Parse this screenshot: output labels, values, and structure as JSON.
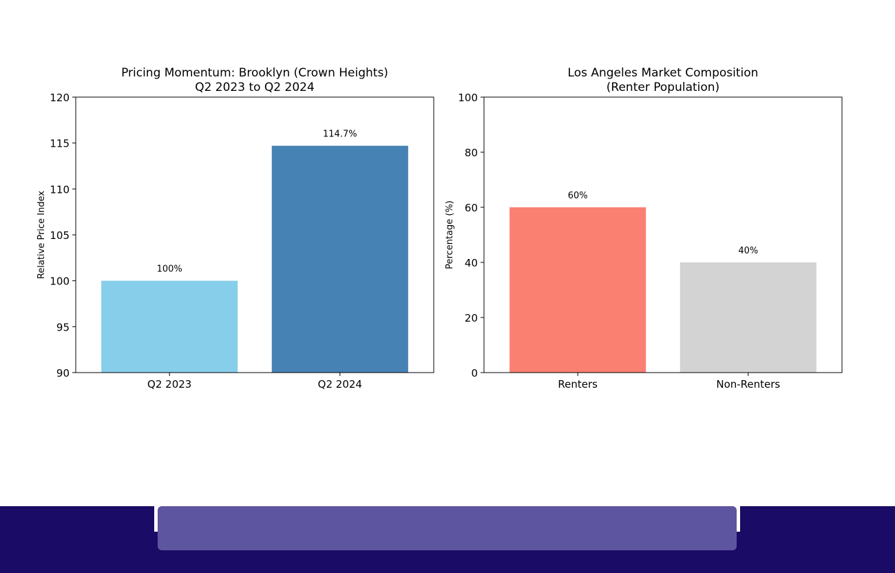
{
  "chart_data": [
    {
      "type": "bar",
      "title": "Pricing Momentum: Brooklyn (Crown Heights)",
      "subtitle": "Q2 2023 to Q2 2024",
      "xlabel": "",
      "ylabel": "Relative Price Index",
      "categories": [
        "Q2 2023",
        "Q2 2024"
      ],
      "values": [
        100,
        114.7
      ],
      "data_labels": [
        "100%",
        "114.7%"
      ],
      "colors": [
        "#87ceeb",
        "#4682b4"
      ],
      "ylim": [
        90,
        120
      ],
      "yticks": [
        90,
        95,
        100,
        105,
        110,
        115,
        120
      ],
      "grid": false
    },
    {
      "type": "bar",
      "title": "Los Angeles Market Composition",
      "subtitle": "(Renter Population)",
      "xlabel": "",
      "ylabel": "Percentage (%)",
      "categories": [
        "Renters",
        "Non-Renters"
      ],
      "values": [
        60,
        40
      ],
      "data_labels": [
        "60%",
        "40%"
      ],
      "colors": [
        "#fa8072",
        "#d3d3d3"
      ],
      "ylim": [
        0,
        100
      ],
      "yticks": [
        0,
        20,
        40,
        60,
        80,
        100
      ],
      "grid": false
    }
  ],
  "footer": {
    "bar_color": "#1a0b66",
    "panel_color": "#5e55a0"
  }
}
